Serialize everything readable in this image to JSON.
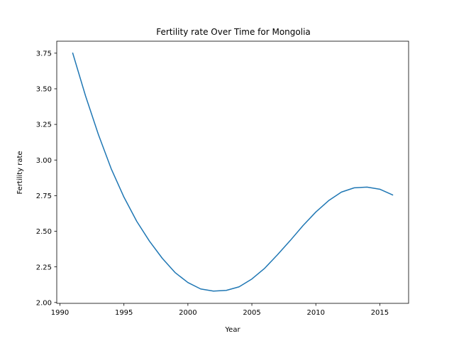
{
  "chart_data": {
    "type": "line",
    "title": "Fertility rate Over Time for Mongolia",
    "xlabel": "Year",
    "ylabel": "Fertility rate",
    "xlim": [
      1989.75,
      2017.25
    ],
    "ylim": [
      1.994,
      3.834
    ],
    "xticks": [
      1990,
      1995,
      2000,
      2005,
      2010,
      2015
    ],
    "xtick_labels": [
      "1990",
      "1995",
      "2000",
      "2005",
      "2010",
      "2015"
    ],
    "yticks": [
      2.0,
      2.25,
      2.5,
      2.75,
      3.0,
      3.25,
      3.5,
      3.75
    ],
    "ytick_labels": [
      "2.00",
      "2.25",
      "2.50",
      "2.75",
      "3.00",
      "3.25",
      "3.50",
      "3.75"
    ],
    "grid": false,
    "series": [
      {
        "color": "#1f77b4",
        "x": [
          1991,
          1992,
          1993,
          1994,
          1995,
          1996,
          1997,
          1998,
          1999,
          2000,
          2001,
          2002,
          2003,
          2004,
          2005,
          2006,
          2007,
          2008,
          2009,
          2010,
          2011,
          2012,
          2013,
          2014,
          2015,
          2016
        ],
        "y": [
          3.75,
          3.45,
          3.18,
          2.94,
          2.74,
          2.57,
          2.43,
          2.31,
          2.21,
          2.14,
          2.095,
          2.08,
          2.085,
          2.11,
          2.165,
          2.24,
          2.335,
          2.435,
          2.54,
          2.635,
          2.715,
          2.775,
          2.805,
          2.81,
          2.795,
          2.755
        ]
      }
    ]
  }
}
